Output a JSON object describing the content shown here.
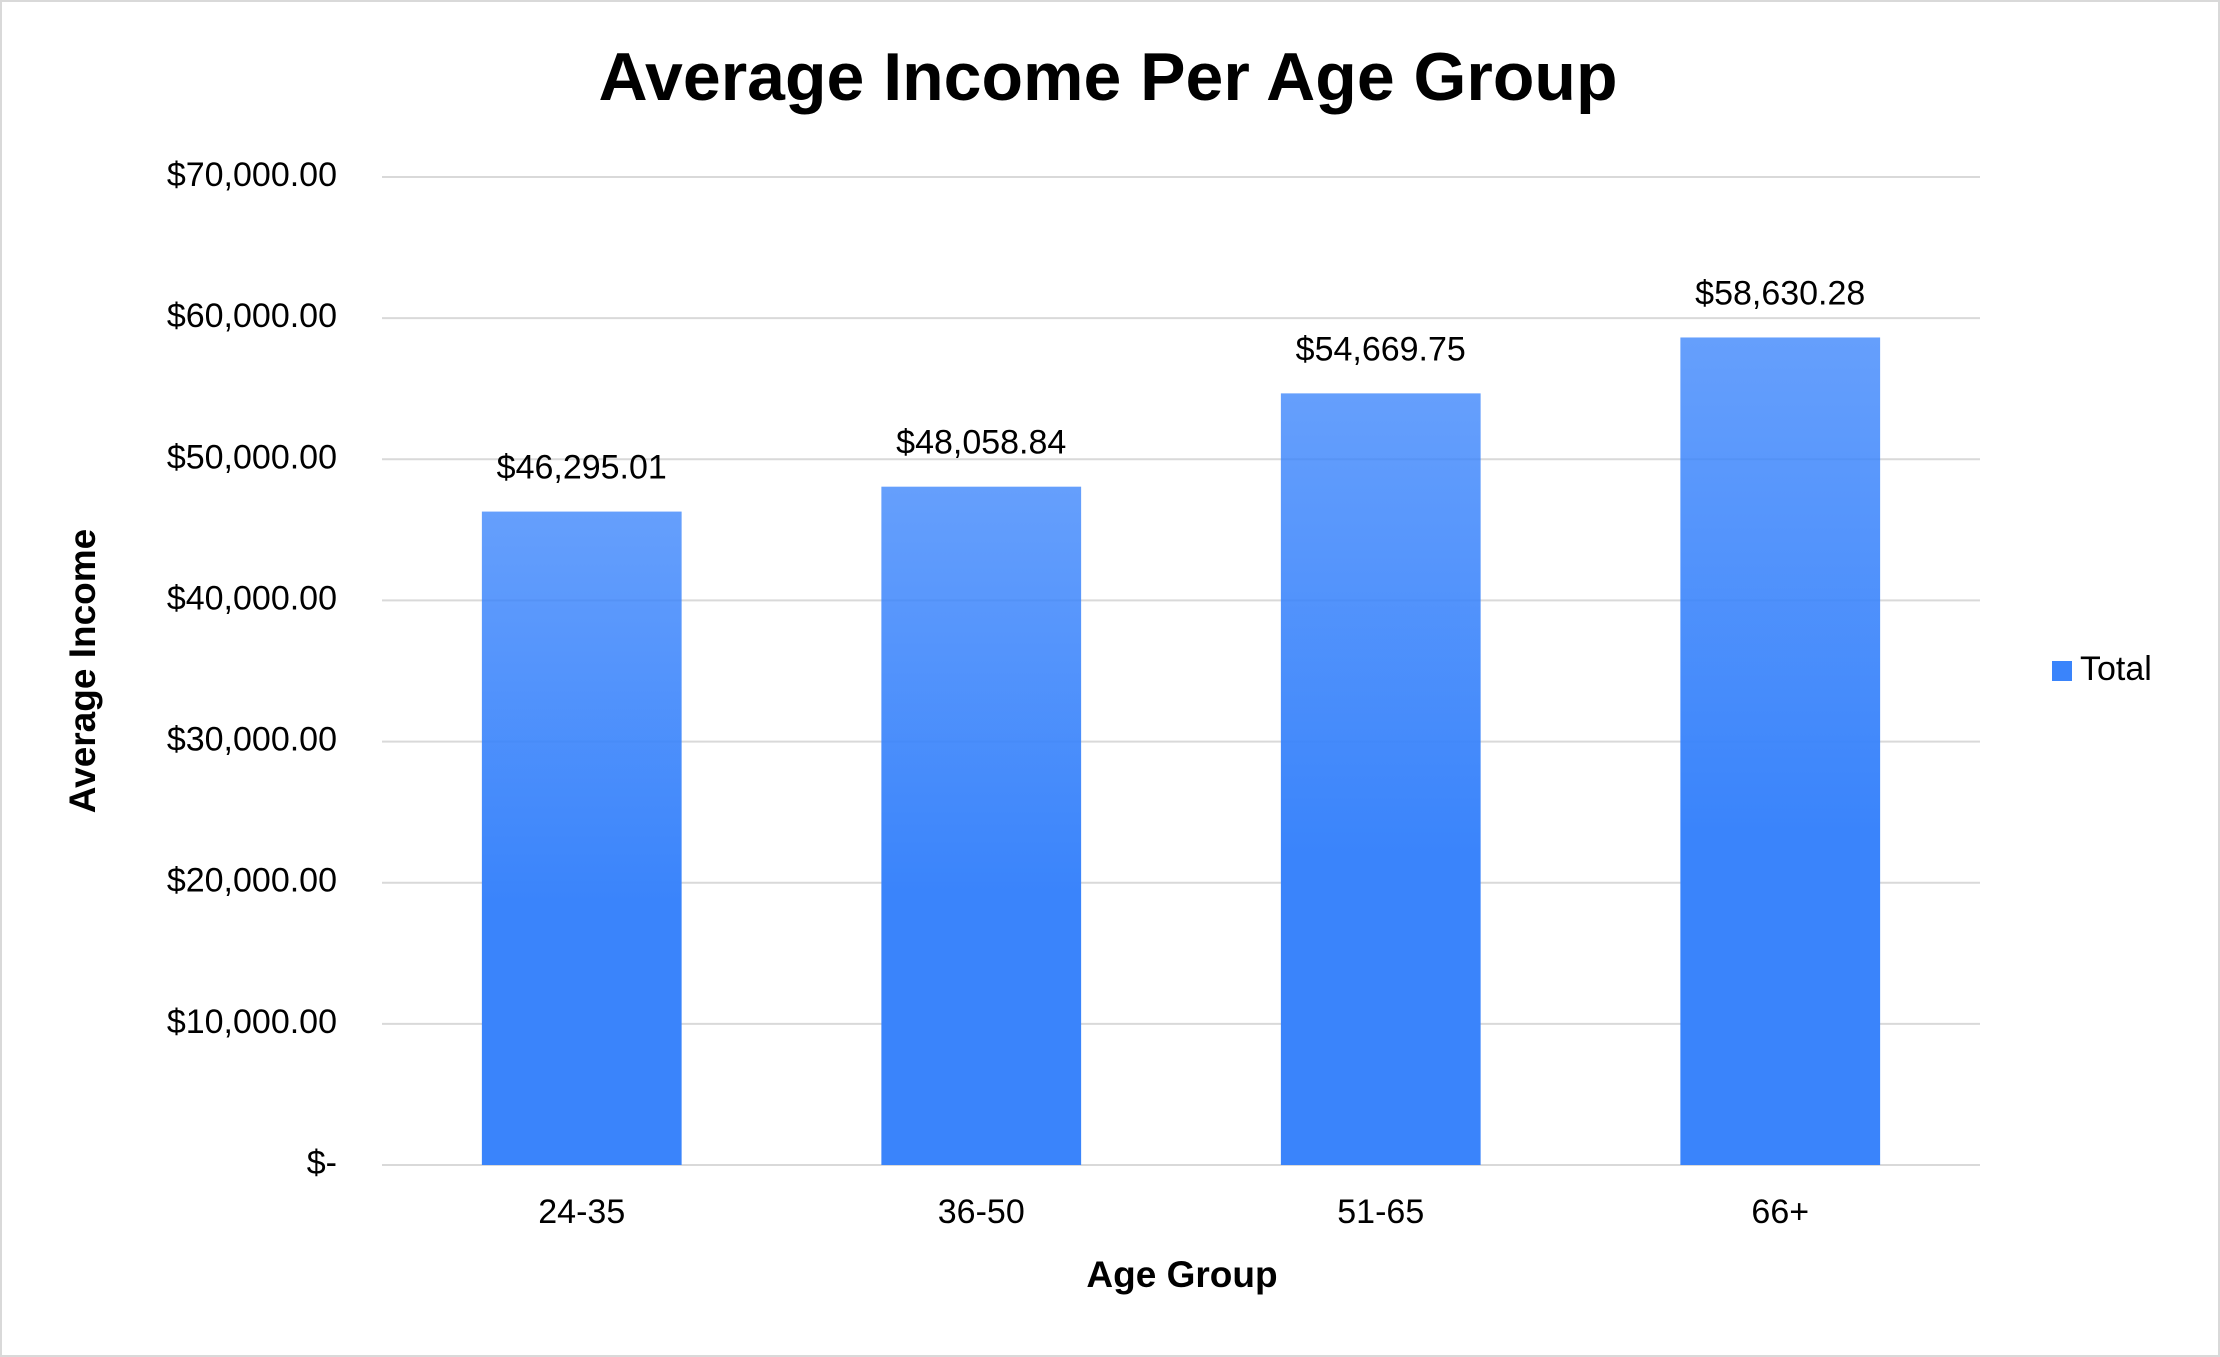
{
  "chart_data": {
    "type": "bar",
    "title": "Average Income Per Age Group",
    "x_label": "Age Group",
    "y_label": "Average Income",
    "categories": [
      "24-35",
      "36-50",
      "51-65",
      "66+"
    ],
    "series": [
      {
        "name": "Total",
        "color": "#3a84fb",
        "values": [
          46295.01,
          48058.84,
          54669.75,
          58630.28
        ],
        "value_labels": [
          "$46,295.01",
          "$48,058.84",
          "$54,669.75",
          "$58,630.28"
        ]
      }
    ],
    "ylim": [
      0,
      70000
    ],
    "yticks": [
      {
        "value": 0,
        "label": "$-"
      },
      {
        "value": 10000,
        "label": "$10,000.00"
      },
      {
        "value": 20000,
        "label": "$20,000.00"
      },
      {
        "value": 30000,
        "label": "$30,000.00"
      },
      {
        "value": 40000,
        "label": "$40,000.00"
      },
      {
        "value": 50000,
        "label": "$50,000.00"
      },
      {
        "value": 60000,
        "label": "$60,000.00"
      },
      {
        "value": 70000,
        "label": "$70,000.00"
      }
    ],
    "grid": true,
    "legend": "right"
  }
}
